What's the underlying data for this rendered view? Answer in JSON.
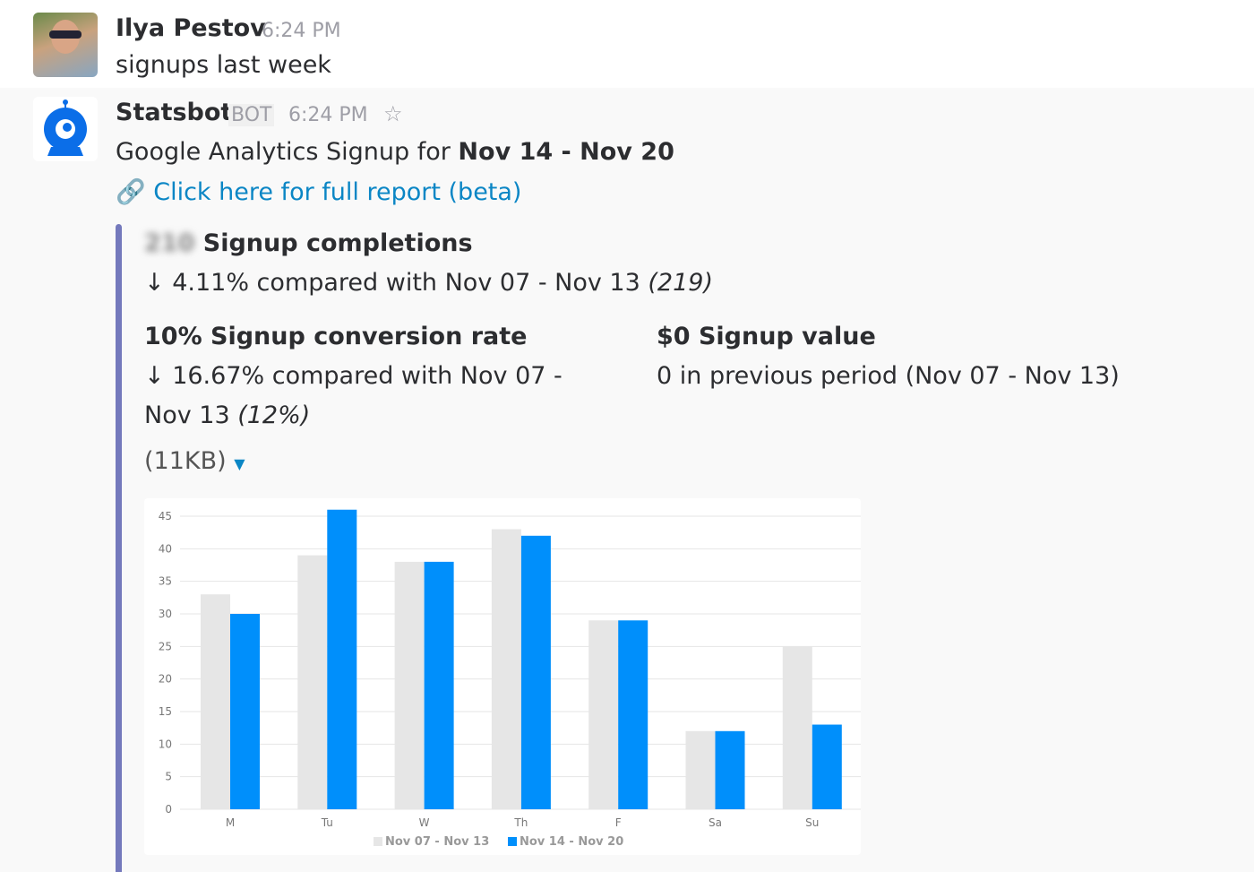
{
  "message1": {
    "author": "Ilya Pestov",
    "time": "6:24 PM",
    "text": "signups last week"
  },
  "message2": {
    "author": "Statsbot",
    "badge": "BOT",
    "time": "6:24 PM",
    "intro": "Google Analytics Signup for ",
    "period": "Nov 14 - Nov 20",
    "link": "Click here for full report (beta)",
    "completions_value": "210",
    "completions_label": "Signup completions",
    "completions_change": "↓ 4.11% compared with Nov 07 - Nov 13 ",
    "completions_prev": "(219)",
    "conversion_title": "10% Signup conversion rate",
    "conversion_change_1": "↓ 16.67% compared with Nov 07 -",
    "conversion_change_2": "Nov 13 ",
    "conversion_prev": "(12%)",
    "value_title": "$0 Signup value",
    "value_change": "0 in previous period (Nov 07 - Nov 13)",
    "attachment_size": "(11KB)"
  },
  "colors": {
    "prev": "#e6e6e6",
    "curr": "#008ffb",
    "accent": "#7479bc"
  },
  "chart_data": {
    "type": "bar",
    "categories": [
      "M",
      "Tu",
      "W",
      "Th",
      "F",
      "Sa",
      "Su"
    ],
    "series": [
      {
        "name": "Nov 07 - Nov 13",
        "values": [
          33,
          39,
          38,
          43,
          29,
          12,
          25
        ]
      },
      {
        "name": "Nov 14 - Nov 20",
        "values": [
          30,
          46,
          38,
          42,
          29,
          12,
          13
        ]
      }
    ],
    "yticks": [
      0,
      5,
      10,
      15,
      20,
      25,
      30,
      35,
      40,
      45
    ],
    "ylim": [
      0,
      45
    ],
    "legend": "bottom",
    "grid": true
  }
}
